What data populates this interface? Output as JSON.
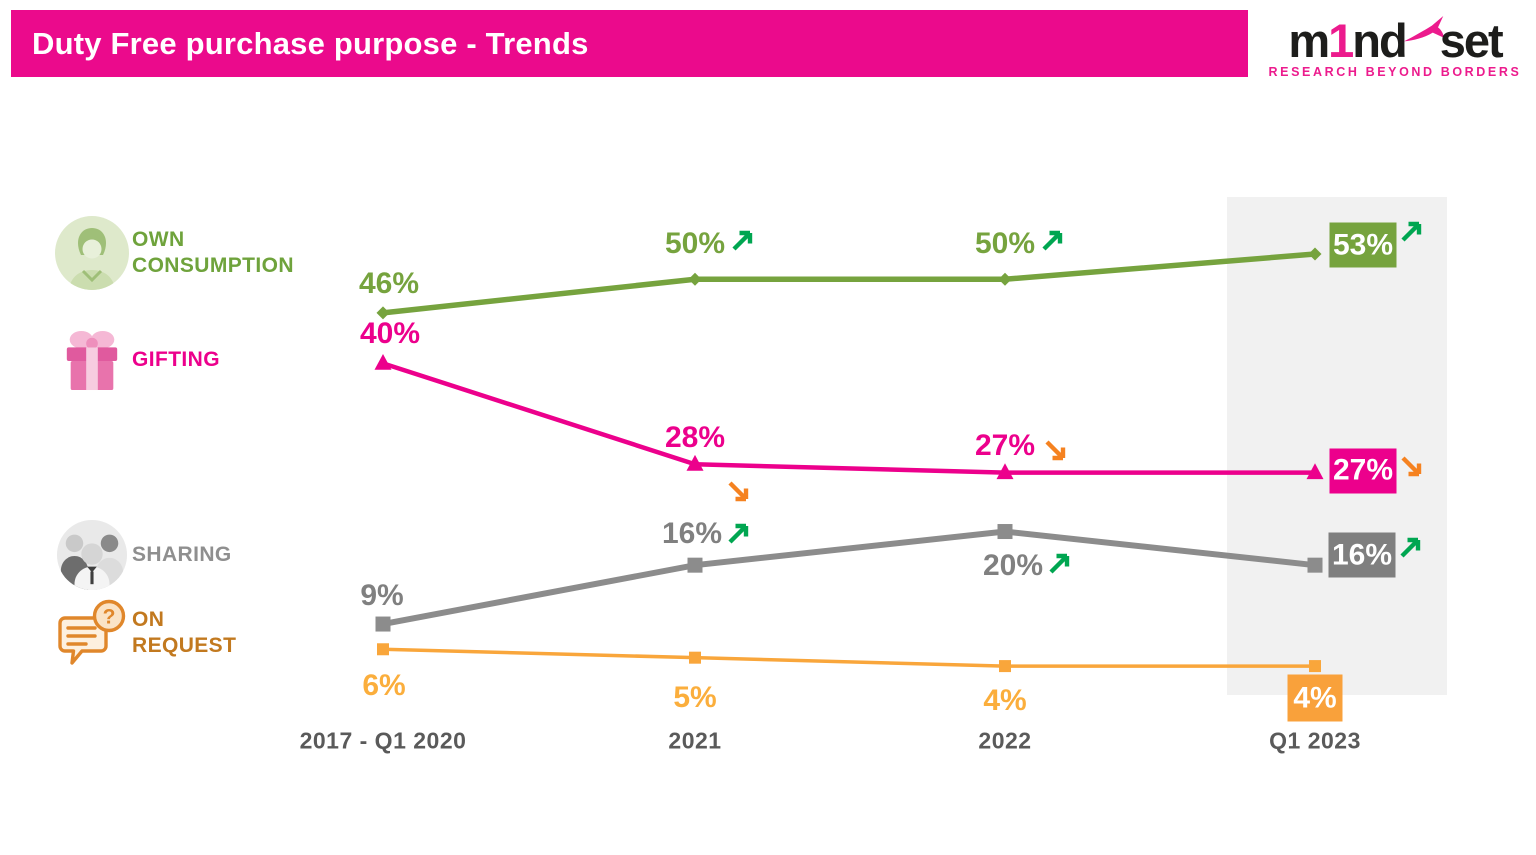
{
  "header": {
    "title": "Duty Free purchase purpose - Trends",
    "bar_color": "#EB0A8C",
    "text_color": "#FFFFFF"
  },
  "logo": {
    "part_m": "m",
    "part_1": "1",
    "part_nd": "nd",
    "part_set": "set",
    "tagline": "RESEARCH BEYOND BORDERS",
    "pink": "#EC1B8D",
    "black": "#1D1D1B"
  },
  "legend": {
    "items": [
      {
        "id": "own-consumption",
        "line1": "OWN",
        "line2": "CONSUMPTION",
        "color": "#6FA33C",
        "icon": "person-avatar-icon"
      },
      {
        "id": "gifting",
        "line1": "GIFTING",
        "line2": "",
        "color": "#EC008C",
        "icon": "gift-icon"
      },
      {
        "id": "sharing",
        "line1": "SHARING",
        "line2": "",
        "color": "#8F8F8F",
        "icon": "people-avatar-icon"
      },
      {
        "id": "on-request",
        "line1": "ON",
        "line2": "REQUEST",
        "color": "#C2791F",
        "icon": "chat-question-icon"
      }
    ]
  },
  "chart_data": {
    "type": "line",
    "categories": [
      "2017 - Q1 2020",
      "2021",
      "2022",
      "Q1 2023"
    ],
    "highlighted_category": "Q1 2023",
    "highlight_band_color": "#F1F1F1",
    "axis_label_color": "#5A5A5A",
    "arrow_up_color": "#00A651",
    "arrow_down_color": "#F58220",
    "grid": false,
    "legend_position": "left",
    "ylim": [
      0,
      60
    ],
    "last_point_boxed": true,
    "series": [
      {
        "name": "OWN CONSUMPTION",
        "color": "#76A33E",
        "label_color": "#76A33E",
        "box_color": "#76A33E",
        "marker": "diamond",
        "values": [
          46,
          50,
          50,
          53
        ],
        "labels": [
          "46%",
          "50%",
          "50%",
          "53%"
        ],
        "trend_arrows": [
          null,
          "up",
          "up",
          "up"
        ]
      },
      {
        "name": "GIFTING",
        "color": "#EC008C",
        "label_color": "#EC008C",
        "box_color": "#EC008C",
        "marker": "triangle",
        "values": [
          40,
          28,
          27,
          27
        ],
        "labels": [
          "40%",
          "28%",
          "27%",
          "27%"
        ],
        "trend_arrows": [
          null,
          "down",
          "down",
          "down"
        ]
      },
      {
        "name": "SHARING",
        "color": "#8C8C8C",
        "label_color": "#808080",
        "box_color": "#7F7F7F",
        "marker": "square",
        "values": [
          9,
          16,
          20,
          16
        ],
        "labels": [
          "9%",
          "16%",
          "20%",
          "16%"
        ],
        "trend_arrows": [
          null,
          "up",
          "up",
          "up"
        ]
      },
      {
        "name": "ON REQUEST",
        "color": "#F9A63B",
        "label_color": "#FBAE3C",
        "box_color": "#F9A13B",
        "marker": "square",
        "values": [
          6,
          5,
          4,
          4
        ],
        "labels": [
          "6%",
          "5%",
          "4%",
          "4%"
        ],
        "trend_arrows": [
          null,
          null,
          null,
          null
        ]
      }
    ]
  }
}
